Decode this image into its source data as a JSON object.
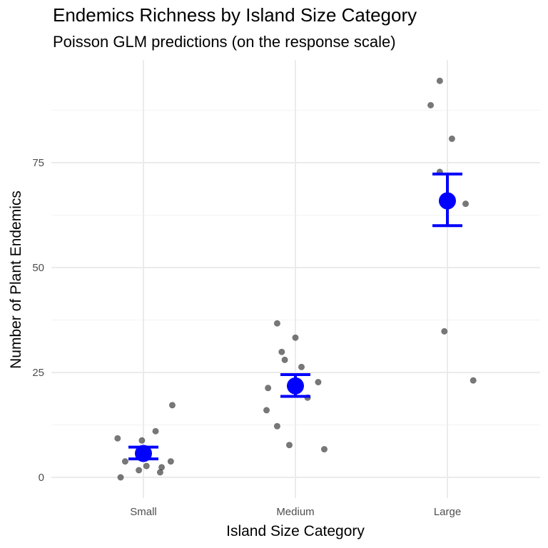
{
  "chart_data": {
    "type": "scatter",
    "title": "Endemics Richness by Island Size Category",
    "subtitle": "Poisson GLM predictions (on the response scale)",
    "xlabel": "Island Size Category",
    "ylabel": "Number of Plant Endemics",
    "categories": [
      "Small",
      "Medium",
      "Large"
    ],
    "ylim": [
      -4.5,
      97
    ],
    "y_ticks": [
      0,
      25,
      50,
      75
    ],
    "grid": true,
    "observations": [
      {
        "category": "Small",
        "jitter": -0.17,
        "y": 9.3
      },
      {
        "category": "Small",
        "jitter": -0.12,
        "y": 3.8
      },
      {
        "category": "Small",
        "jitter": -0.15,
        "y": 0.0
      },
      {
        "category": "Small",
        "jitter": -0.03,
        "y": 1.7
      },
      {
        "category": "Small",
        "jitter": 0.02,
        "y": 2.7
      },
      {
        "category": "Small",
        "jitter": -0.01,
        "y": 8.8
      },
      {
        "category": "Small",
        "jitter": 0.08,
        "y": 11.0
      },
      {
        "category": "Small",
        "jitter": 0.11,
        "y": 1.2
      },
      {
        "category": "Small",
        "jitter": 0.12,
        "y": 2.4
      },
      {
        "category": "Small",
        "jitter": 0.18,
        "y": 3.8
      },
      {
        "category": "Small",
        "jitter": 0.19,
        "y": 17.2
      },
      {
        "category": "Medium",
        "jitter": -0.12,
        "y": 36.7
      },
      {
        "category": "Medium",
        "jitter": -0.09,
        "y": 29.9
      },
      {
        "category": "Medium",
        "jitter": -0.07,
        "y": 28.0
      },
      {
        "category": "Medium",
        "jitter": 0.0,
        "y": 33.3
      },
      {
        "category": "Medium",
        "jitter": 0.04,
        "y": 26.3
      },
      {
        "category": "Medium",
        "jitter": -0.18,
        "y": 21.3
      },
      {
        "category": "Medium",
        "jitter": 0.15,
        "y": 22.7
      },
      {
        "category": "Medium",
        "jitter": 0.08,
        "y": 19.0
      },
      {
        "category": "Medium",
        "jitter": -0.19,
        "y": 16.0
      },
      {
        "category": "Medium",
        "jitter": -0.12,
        "y": 12.2
      },
      {
        "category": "Medium",
        "jitter": -0.04,
        "y": 7.7
      },
      {
        "category": "Medium",
        "jitter": 0.19,
        "y": 6.7
      },
      {
        "category": "Large",
        "jitter": -0.05,
        "y": 94.5
      },
      {
        "category": "Large",
        "jitter": -0.11,
        "y": 88.7
      },
      {
        "category": "Large",
        "jitter": 0.03,
        "y": 80.7
      },
      {
        "category": "Large",
        "jitter": -0.05,
        "y": 72.8
      },
      {
        "category": "Large",
        "jitter": 0.12,
        "y": 65.2
      },
      {
        "category": "Large",
        "jitter": -0.02,
        "y": 34.8
      },
      {
        "category": "Large",
        "jitter": 0.17,
        "y": 23.1
      }
    ],
    "predictions": [
      {
        "category": "Small",
        "fit": 5.7,
        "lower": 4.4,
        "upper": 7.2
      },
      {
        "category": "Medium",
        "fit": 21.8,
        "lower": 19.3,
        "upper": 24.5
      },
      {
        "category": "Large",
        "fit": 65.9,
        "lower": 60.0,
        "upper": 72.3
      }
    ],
    "colors": {
      "observation": "#444444",
      "prediction": "#0000ff",
      "grid_major": "#ebebeb",
      "grid_minor": "#f3f3f3"
    }
  }
}
